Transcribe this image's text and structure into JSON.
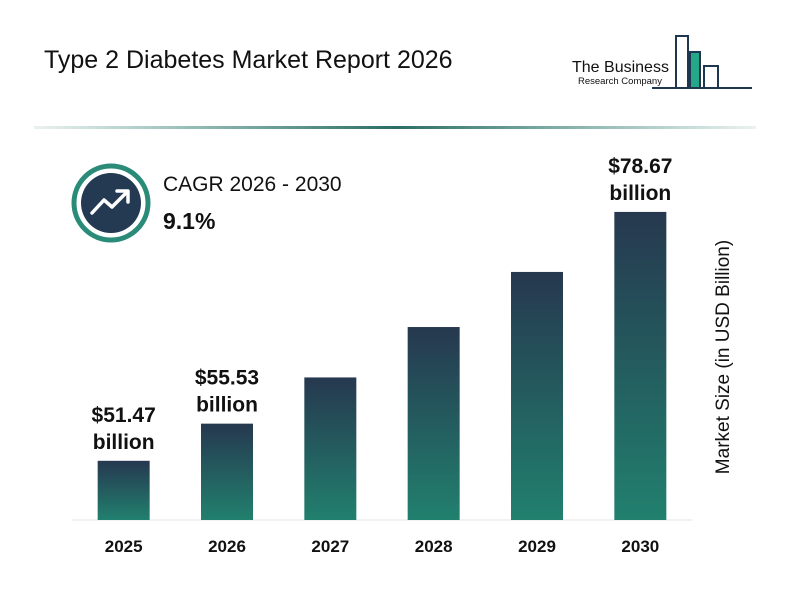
{
  "chart_data": {
    "type": "bar",
    "title": "Type 2 Diabetes Market Report 2026",
    "brand": {
      "line1": "The Business",
      "line2": "Research Company"
    },
    "cagr": {
      "label": "CAGR 2026 - 2030",
      "value": "9.1%"
    },
    "y_label": "Market Size (in USD Billion)",
    "categories": [
      "2025",
      "2026",
      "2027",
      "2028",
      "2029",
      "2030"
    ],
    "values": [
      51.47,
      55.53,
      60.58,
      66.09,
      72.11,
      78.67
    ],
    "value_labels": [
      "$51.47 billion",
      "$55.53 billion",
      null,
      null,
      null,
      "$78.67 billion"
    ],
    "gradient": [
      "#26384f",
      "#21806e"
    ],
    "ylim": [
      45,
      85
    ]
  }
}
